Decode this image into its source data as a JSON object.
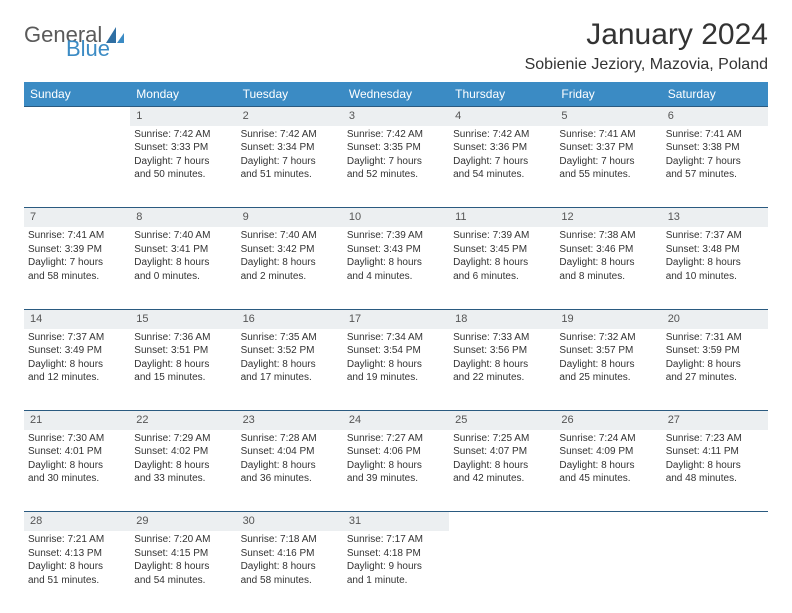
{
  "logo": {
    "text1": "General",
    "text2": "Blue"
  },
  "title": "January 2024",
  "location": "Sobienie Jeziory, Mazovia, Poland",
  "colors": {
    "header_bg": "#3b8bc4",
    "header_text": "#ffffff",
    "daynum_bg": "#eceff1",
    "border": "#2a5a80",
    "body_text": "#333333",
    "logo_gray": "#5a5a5a",
    "logo_blue": "#3b8bc4"
  },
  "weekdays": [
    "Sunday",
    "Monday",
    "Tuesday",
    "Wednesday",
    "Thursday",
    "Friday",
    "Saturday"
  ],
  "weeks": [
    {
      "nums": [
        "",
        "1",
        "2",
        "3",
        "4",
        "5",
        "6"
      ],
      "cells": [
        null,
        {
          "sr": "Sunrise: 7:42 AM",
          "ss": "Sunset: 3:33 PM",
          "d1": "Daylight: 7 hours",
          "d2": "and 50 minutes."
        },
        {
          "sr": "Sunrise: 7:42 AM",
          "ss": "Sunset: 3:34 PM",
          "d1": "Daylight: 7 hours",
          "d2": "and 51 minutes."
        },
        {
          "sr": "Sunrise: 7:42 AM",
          "ss": "Sunset: 3:35 PM",
          "d1": "Daylight: 7 hours",
          "d2": "and 52 minutes."
        },
        {
          "sr": "Sunrise: 7:42 AM",
          "ss": "Sunset: 3:36 PM",
          "d1": "Daylight: 7 hours",
          "d2": "and 54 minutes."
        },
        {
          "sr": "Sunrise: 7:41 AM",
          "ss": "Sunset: 3:37 PM",
          "d1": "Daylight: 7 hours",
          "d2": "and 55 minutes."
        },
        {
          "sr": "Sunrise: 7:41 AM",
          "ss": "Sunset: 3:38 PM",
          "d1": "Daylight: 7 hours",
          "d2": "and 57 minutes."
        }
      ]
    },
    {
      "nums": [
        "7",
        "8",
        "9",
        "10",
        "11",
        "12",
        "13"
      ],
      "cells": [
        {
          "sr": "Sunrise: 7:41 AM",
          "ss": "Sunset: 3:39 PM",
          "d1": "Daylight: 7 hours",
          "d2": "and 58 minutes."
        },
        {
          "sr": "Sunrise: 7:40 AM",
          "ss": "Sunset: 3:41 PM",
          "d1": "Daylight: 8 hours",
          "d2": "and 0 minutes."
        },
        {
          "sr": "Sunrise: 7:40 AM",
          "ss": "Sunset: 3:42 PM",
          "d1": "Daylight: 8 hours",
          "d2": "and 2 minutes."
        },
        {
          "sr": "Sunrise: 7:39 AM",
          "ss": "Sunset: 3:43 PM",
          "d1": "Daylight: 8 hours",
          "d2": "and 4 minutes."
        },
        {
          "sr": "Sunrise: 7:39 AM",
          "ss": "Sunset: 3:45 PM",
          "d1": "Daylight: 8 hours",
          "d2": "and 6 minutes."
        },
        {
          "sr": "Sunrise: 7:38 AM",
          "ss": "Sunset: 3:46 PM",
          "d1": "Daylight: 8 hours",
          "d2": "and 8 minutes."
        },
        {
          "sr": "Sunrise: 7:37 AM",
          "ss": "Sunset: 3:48 PM",
          "d1": "Daylight: 8 hours",
          "d2": "and 10 minutes."
        }
      ]
    },
    {
      "nums": [
        "14",
        "15",
        "16",
        "17",
        "18",
        "19",
        "20"
      ],
      "cells": [
        {
          "sr": "Sunrise: 7:37 AM",
          "ss": "Sunset: 3:49 PM",
          "d1": "Daylight: 8 hours",
          "d2": "and 12 minutes."
        },
        {
          "sr": "Sunrise: 7:36 AM",
          "ss": "Sunset: 3:51 PM",
          "d1": "Daylight: 8 hours",
          "d2": "and 15 minutes."
        },
        {
          "sr": "Sunrise: 7:35 AM",
          "ss": "Sunset: 3:52 PM",
          "d1": "Daylight: 8 hours",
          "d2": "and 17 minutes."
        },
        {
          "sr": "Sunrise: 7:34 AM",
          "ss": "Sunset: 3:54 PM",
          "d1": "Daylight: 8 hours",
          "d2": "and 19 minutes."
        },
        {
          "sr": "Sunrise: 7:33 AM",
          "ss": "Sunset: 3:56 PM",
          "d1": "Daylight: 8 hours",
          "d2": "and 22 minutes."
        },
        {
          "sr": "Sunrise: 7:32 AM",
          "ss": "Sunset: 3:57 PM",
          "d1": "Daylight: 8 hours",
          "d2": "and 25 minutes."
        },
        {
          "sr": "Sunrise: 7:31 AM",
          "ss": "Sunset: 3:59 PM",
          "d1": "Daylight: 8 hours",
          "d2": "and 27 minutes."
        }
      ]
    },
    {
      "nums": [
        "21",
        "22",
        "23",
        "24",
        "25",
        "26",
        "27"
      ],
      "cells": [
        {
          "sr": "Sunrise: 7:30 AM",
          "ss": "Sunset: 4:01 PM",
          "d1": "Daylight: 8 hours",
          "d2": "and 30 minutes."
        },
        {
          "sr": "Sunrise: 7:29 AM",
          "ss": "Sunset: 4:02 PM",
          "d1": "Daylight: 8 hours",
          "d2": "and 33 minutes."
        },
        {
          "sr": "Sunrise: 7:28 AM",
          "ss": "Sunset: 4:04 PM",
          "d1": "Daylight: 8 hours",
          "d2": "and 36 minutes."
        },
        {
          "sr": "Sunrise: 7:27 AM",
          "ss": "Sunset: 4:06 PM",
          "d1": "Daylight: 8 hours",
          "d2": "and 39 minutes."
        },
        {
          "sr": "Sunrise: 7:25 AM",
          "ss": "Sunset: 4:07 PM",
          "d1": "Daylight: 8 hours",
          "d2": "and 42 minutes."
        },
        {
          "sr": "Sunrise: 7:24 AM",
          "ss": "Sunset: 4:09 PM",
          "d1": "Daylight: 8 hours",
          "d2": "and 45 minutes."
        },
        {
          "sr": "Sunrise: 7:23 AM",
          "ss": "Sunset: 4:11 PM",
          "d1": "Daylight: 8 hours",
          "d2": "and 48 minutes."
        }
      ]
    },
    {
      "nums": [
        "28",
        "29",
        "30",
        "31",
        "",
        "",
        ""
      ],
      "cells": [
        {
          "sr": "Sunrise: 7:21 AM",
          "ss": "Sunset: 4:13 PM",
          "d1": "Daylight: 8 hours",
          "d2": "and 51 minutes."
        },
        {
          "sr": "Sunrise: 7:20 AM",
          "ss": "Sunset: 4:15 PM",
          "d1": "Daylight: 8 hours",
          "d2": "and 54 minutes."
        },
        {
          "sr": "Sunrise: 7:18 AM",
          "ss": "Sunset: 4:16 PM",
          "d1": "Daylight: 8 hours",
          "d2": "and 58 minutes."
        },
        {
          "sr": "Sunrise: 7:17 AM",
          "ss": "Sunset: 4:18 PM",
          "d1": "Daylight: 9 hours",
          "d2": "and 1 minute."
        },
        null,
        null,
        null
      ]
    }
  ]
}
